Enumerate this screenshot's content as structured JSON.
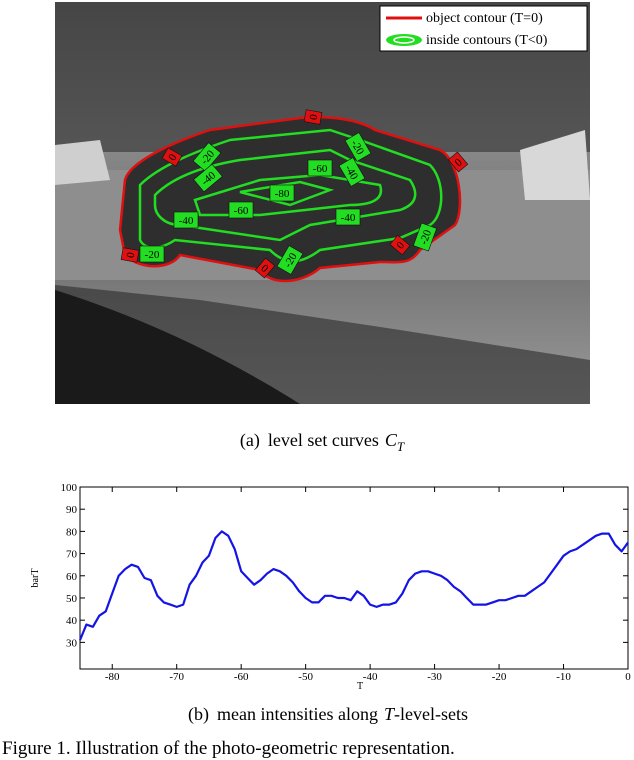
{
  "image": {
    "legend": [
      "object contour (T=0)",
      "inside contours (T<0)"
    ],
    "labels": [
      "0",
      "0",
      "0",
      "0",
      "0",
      "0",
      "-20",
      "-20",
      "-20",
      "-20",
      "-20",
      "-40",
      "-40",
      "-40",
      "-40",
      "-60",
      "-60",
      "-80"
    ]
  },
  "caption_a": {
    "label": "(a)",
    "text": "level set curves",
    "symbol": "C",
    "subscript": "T"
  },
  "chart_data": {
    "type": "line",
    "xlabel": "T",
    "ylabel": "barT",
    "color": "#1414e6",
    "x": [
      -85,
      -84,
      -83,
      -82,
      -81,
      -80,
      -79,
      -78,
      -77,
      -76,
      -75,
      -74,
      -73,
      -72,
      -71,
      -70,
      -69,
      -68,
      -67,
      -66,
      -65,
      -64,
      -63,
      -62,
      -61,
      -60,
      -59,
      -58,
      -57,
      -56,
      -55,
      -54,
      -53,
      -52,
      -51,
      -50,
      -49,
      -48,
      -47,
      -46,
      -45,
      -44,
      -43,
      -42,
      -41,
      -40,
      -39,
      -38,
      -37,
      -36,
      -35,
      -34,
      -33,
      -32,
      -31,
      -30,
      -29,
      -28,
      -27,
      -26,
      -25,
      -24,
      -23,
      -22,
      -21,
      -20,
      -19,
      -18,
      -17,
      -16,
      -15,
      -14,
      -13,
      -12,
      -11,
      -10,
      -9,
      -8,
      -7,
      -6,
      -5,
      -4,
      -3,
      -2,
      -1,
      0
    ],
    "values": [
      31,
      38,
      37,
      42,
      44,
      52,
      60,
      63,
      65,
      64,
      59,
      58,
      51,
      48,
      47,
      46,
      47,
      56,
      60,
      66,
      69,
      77,
      80,
      78,
      72,
      62,
      59,
      56,
      58,
      61,
      63,
      62,
      60,
      57,
      53,
      50,
      48,
      48,
      51,
      51,
      50,
      50,
      49,
      53,
      51,
      47,
      46,
      47,
      47,
      48,
      52,
      58,
      61,
      62,
      62,
      61,
      60,
      58,
      55,
      53,
      50,
      47,
      47,
      47,
      48,
      49,
      49,
      50,
      51,
      51,
      53,
      55,
      57,
      61,
      65,
      69,
      71,
      72,
      74,
      76,
      78,
      79,
      79,
      74,
      71,
      75
    ],
    "xlim": [
      -85,
      0
    ],
    "ylim": [
      18,
      100
    ],
    "xticks": [
      -80,
      -70,
      -60,
      -50,
      -40,
      -30,
      -20,
      -10,
      0
    ],
    "yticks": [
      30,
      40,
      50,
      60,
      70,
      80,
      90,
      100
    ]
  },
  "caption_b": {
    "label": "(b)",
    "text": "mean intensities along",
    "symbol": "T",
    "suffix": "-level-sets"
  },
  "figure_caption": "Figure 1. Illustration of the photo-geometric representation."
}
